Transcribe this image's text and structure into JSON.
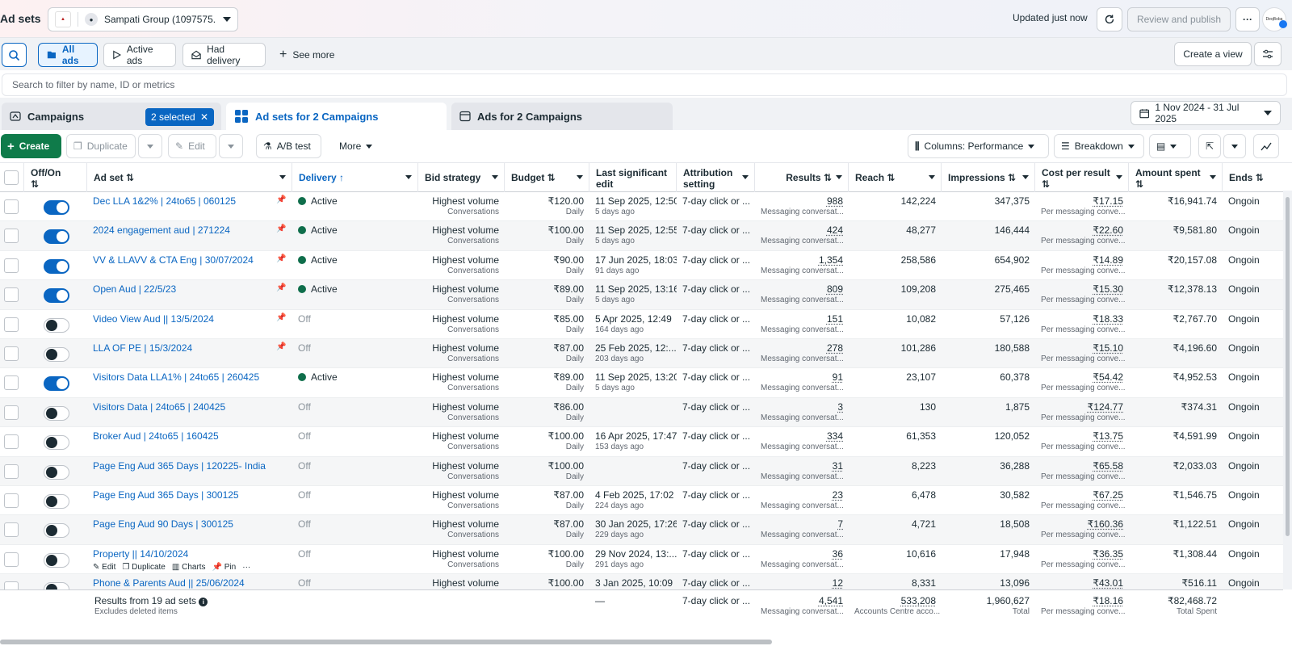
{
  "header": {
    "title": "Ad sets",
    "account_name": "Sampati Group (1097575...",
    "updated": "Updated just now",
    "review_publish": "Review and publish",
    "more_dots": "···",
    "avatar_text": "DeqBoba"
  },
  "filters": {
    "all_ads": "All ads",
    "active_ads": "Active ads",
    "had_delivery": "Had delivery",
    "see_more": "See more",
    "create_view": "Create a view",
    "search_placeholder": "Search to filter by name, ID or metrics"
  },
  "tabs": {
    "campaigns": "Campaigns",
    "selected": "2 selected",
    "adsets": "Ad sets for 2 Campaigns",
    "ads": "Ads for 2 Campaigns",
    "date_range": "1 Nov 2024 - 31 Jul 2025"
  },
  "toolbar": {
    "create": "Create",
    "duplicate": "Duplicate",
    "edit": "Edit",
    "ab_test": "A/B test",
    "more": "More",
    "columns": "Columns: Performance",
    "breakdown": "Breakdown"
  },
  "columns": {
    "offon": "Off/On",
    "adset": "Ad set",
    "delivery": "Delivery",
    "bid": "Bid strategy",
    "budget": "Budget",
    "last_edit": "Last significant edit",
    "attribution": "Attribution setting",
    "results": "Results",
    "reach": "Reach",
    "impressions": "Impressions",
    "cpr": "Cost per result",
    "spent": "Amount spent",
    "ends": "Ends"
  },
  "common": {
    "bid_main": "Highest volume",
    "bid_sub": "Conversations",
    "budget_sub": "Daily",
    "attribution": "7-day click or ...",
    "results_sub": "Messaging conversat...",
    "cpr_sub": "Per messaging conve...",
    "ends": "Ongoin",
    "row_actions": [
      "Edit",
      "Duplicate",
      "Charts",
      "Pin",
      "···"
    ]
  },
  "rows": [
    {
      "name": "Dec LLA 1&2% | 24to65 | 060125",
      "on": true,
      "pinned": true,
      "delivery": "Active",
      "budget": "₹120.00",
      "edit": "11 Sep 2025, 12:50",
      "edit_ago": "5 days ago",
      "results": "988",
      "reach": "142,224",
      "impr": "347,375",
      "cpr": "₹17.15",
      "spent": "₹16,941.74"
    },
    {
      "name": "2024 engagement aud | 271224",
      "on": true,
      "pinned": true,
      "delivery": "Active",
      "budget": "₹100.00",
      "edit": "11 Sep 2025, 12:55",
      "edit_ago": "5 days ago",
      "results": "424",
      "reach": "48,277",
      "impr": "146,444",
      "cpr": "₹22.60",
      "spent": "₹9,581.80"
    },
    {
      "name": "VV & LLAVV & CTA Eng | 30/07/2024",
      "on": true,
      "pinned": true,
      "delivery": "Active",
      "budget": "₹90.00",
      "edit": "17 Jun 2025, 18:03",
      "edit_ago": "91 days ago",
      "results": "1,354",
      "reach": "258,586",
      "impr": "654,902",
      "cpr": "₹14.89",
      "spent": "₹20,157.08"
    },
    {
      "name": "Open Aud | 22/5/23",
      "on": true,
      "pinned": true,
      "delivery": "Active",
      "budget": "₹89.00",
      "edit": "11 Sep 2025, 13:16",
      "edit_ago": "5 days ago",
      "results": "809",
      "reach": "109,208",
      "impr": "275,465",
      "cpr": "₹15.30",
      "spent": "₹12,378.13"
    },
    {
      "name": "Video View Aud || 13/5/2024",
      "on": false,
      "pinned": true,
      "delivery": "Off",
      "budget": "₹85.00",
      "edit": "5 Apr 2025, 12:49",
      "edit_ago": "164 days ago",
      "results": "151",
      "reach": "10,082",
      "impr": "57,126",
      "cpr": "₹18.33",
      "spent": "₹2,767.70"
    },
    {
      "name": "LLA OF PE | 15/3/2024",
      "on": false,
      "pinned": true,
      "delivery": "Off",
      "budget": "₹87.00",
      "edit": "25 Feb 2025, 12:...",
      "edit_ago": "203 days ago",
      "results": "278",
      "reach": "101,286",
      "impr": "180,588",
      "cpr": "₹15.10",
      "spent": "₹4,196.60"
    },
    {
      "name": "Visitors Data LLA1% | 24to65 | 260425",
      "on": true,
      "pinned": false,
      "delivery": "Active",
      "budget": "₹89.00",
      "edit": "11 Sep 2025, 13:20",
      "edit_ago": "5 days ago",
      "results": "91",
      "reach": "23,107",
      "impr": "60,378",
      "cpr": "₹54.42",
      "spent": "₹4,952.53"
    },
    {
      "name": "Visitors Data | 24to65 | 240425",
      "on": false,
      "pinned": false,
      "delivery": "Off",
      "budget": "₹86.00",
      "edit": "",
      "edit_ago": "",
      "results": "3",
      "reach": "130",
      "impr": "1,875",
      "cpr": "₹124.77",
      "spent": "₹374.31"
    },
    {
      "name": "Broker Aud | 24to65 | 160425",
      "on": false,
      "pinned": false,
      "delivery": "Off",
      "budget": "₹100.00",
      "edit": "16 Apr 2025, 17:47",
      "edit_ago": "153 days ago",
      "results": "334",
      "reach": "61,353",
      "impr": "120,052",
      "cpr": "₹13.75",
      "spent": "₹4,591.99"
    },
    {
      "name": "Page Eng Aud 365 Days | 120225- India",
      "on": false,
      "pinned": false,
      "delivery": "Off",
      "budget": "₹100.00",
      "edit": "",
      "edit_ago": "",
      "results": "31",
      "reach": "8,223",
      "impr": "36,288",
      "cpr": "₹65.58",
      "spent": "₹2,033.03"
    },
    {
      "name": "Page Eng Aud 365 Days | 300125",
      "on": false,
      "pinned": false,
      "delivery": "Off",
      "budget": "₹87.00",
      "edit": "4 Feb 2025, 17:02",
      "edit_ago": "224 days ago",
      "results": "23",
      "reach": "6,478",
      "impr": "30,582",
      "cpr": "₹67.25",
      "spent": "₹1,546.75"
    },
    {
      "name": "Page Eng Aud 90 Days | 300125",
      "on": false,
      "pinned": false,
      "delivery": "Off",
      "budget": "₹87.00",
      "edit": "30 Jan 2025, 17:26",
      "edit_ago": "229 days ago",
      "results": "7",
      "reach": "4,721",
      "impr": "18,508",
      "cpr": "₹160.36",
      "spent": "₹1,122.51"
    },
    {
      "name": "Property || 14/10/2024",
      "on": false,
      "pinned": false,
      "delivery": "Off",
      "budget": "₹100.00",
      "edit": "29 Nov 2024, 13:...",
      "edit_ago": "291 days ago",
      "results": "36",
      "reach": "10,616",
      "impr": "17,948",
      "cpr": "₹36.35",
      "spent": "₹1,308.44",
      "hovered": true
    },
    {
      "name": "Phone & Parents Aud || 25/06/2024",
      "on": false,
      "pinned": false,
      "delivery": "Off",
      "budget": "₹100.00",
      "edit": "3 Jan 2025, 10:09",
      "edit_ago": "",
      "results": "12",
      "reach": "8,331",
      "impr": "13,096",
      "cpr": "₹43.01",
      "spent": "₹516.11"
    }
  ],
  "footer": {
    "results_from": "Results from 19 ad sets",
    "excludes": "Excludes deleted items",
    "edit_dash": "—",
    "attribution": "7-day click or ...",
    "results": "4,541",
    "results_sub": "Messaging conversat...",
    "reach": "533,208",
    "reach_sub": "Accounts Centre acco...",
    "impr": "1,960,627",
    "impr_sub": "Total",
    "cpr": "₹18.16",
    "cpr_sub": "Per messaging conve...",
    "spent": "₹82,468.72",
    "spent_sub": "Total Spent"
  },
  "colors": {
    "accent": "#0a66c2",
    "create": "#0f7b4a",
    "active_dot": "#0f6e4b"
  }
}
